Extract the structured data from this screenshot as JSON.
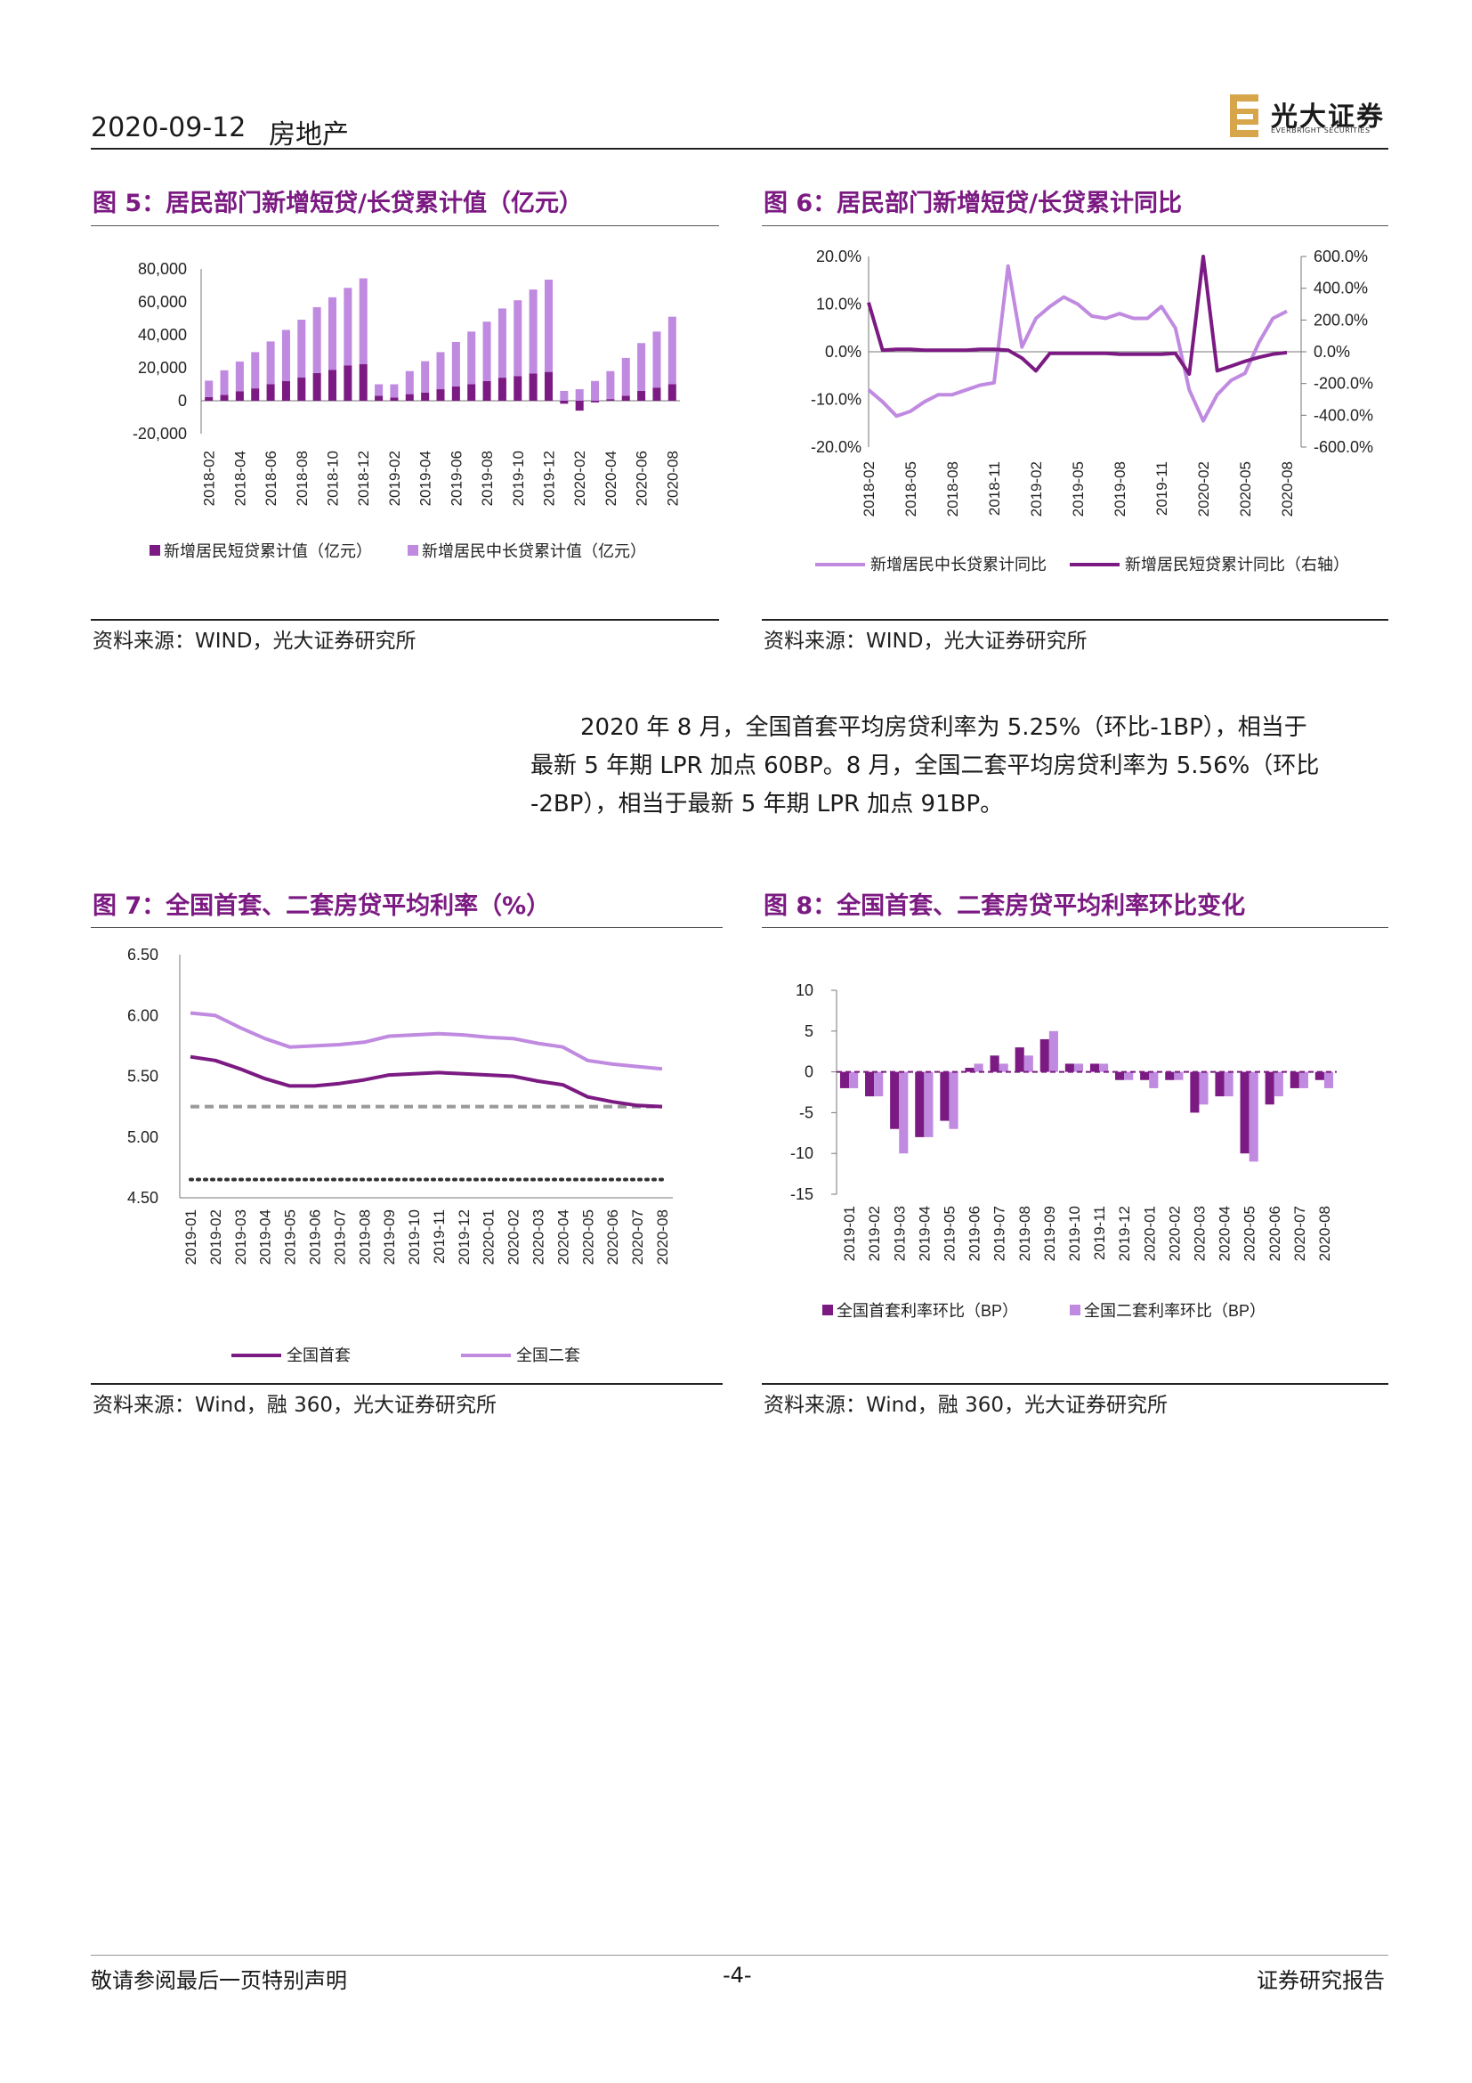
{
  "header": {
    "date": "2020-09-12",
    "sector": "房地产",
    "logo_name": "光大证券",
    "logo_sub": "EVERBRIGHT SECURITIES",
    "logo_letter": "E"
  },
  "fig5": {
    "title": "图 5：居民部门新增短贷/长贷累计值（亿元）",
    "source": "资料来源：WIND，光大证券研究所",
    "chart_data": {
      "type": "bar",
      "stacked": true,
      "categories": [
        "2018-02",
        "2018-03",
        "2018-04",
        "2018-05",
        "2018-06",
        "2018-07",
        "2018-08",
        "2018-09",
        "2018-10",
        "2018-11",
        "2018-12",
        "2019-01",
        "2019-02",
        "2019-03",
        "2019-04",
        "2019-05",
        "2019-06",
        "2019-07",
        "2019-08",
        "2019-09",
        "2019-10",
        "2019-11",
        "2019-12",
        "2020-01",
        "2020-02",
        "2020-03",
        "2020-04",
        "2020-05",
        "2020-06",
        "2020-07",
        "2020-08"
      ],
      "x_tick_labels": [
        "2018-02",
        "2018-04",
        "2018-06",
        "2018-08",
        "2018-10",
        "2018-12",
        "2019-02",
        "2019-04",
        "2019-06",
        "2019-08",
        "2019-10",
        "2019-12",
        "2020-02",
        "2020-04",
        "2020-06",
        "2020-08"
      ],
      "series": [
        {
          "name": "新增居民短贷累计值（亿元）",
          "color": "#7b1a82",
          "values": [
            2200,
            3500,
            5800,
            7500,
            10000,
            12000,
            14200,
            16800,
            18800,
            21500,
            22300,
            3000,
            2000,
            4000,
            5000,
            7000,
            8700,
            10000,
            12000,
            14000,
            15000,
            16500,
            17500,
            -1800,
            -6000,
            -1000,
            1000,
            3000,
            6000,
            8000,
            10000
          ]
        },
        {
          "name": "新增居民中长贷累计值（亿元）",
          "color": "#c08ae0",
          "values": [
            10000,
            15000,
            18000,
            22000,
            26000,
            31000,
            35000,
            40000,
            44000,
            47000,
            52000,
            7000,
            8000,
            14000,
            19000,
            22500,
            27000,
            32000,
            36000,
            42000,
            46000,
            51000,
            56000,
            6000,
            7000,
            12000,
            17000,
            23000,
            29000,
            34000,
            41000
          ]
        }
      ],
      "yticks": [
        "80,000",
        "60,000",
        "40,000",
        "20,000",
        "0",
        "-20,000"
      ],
      "ylim": [
        -20000,
        80000
      ]
    }
  },
  "fig6": {
    "title": "图 6：居民部门新增短贷/长贷累计同比",
    "source": "资料来源：WIND，光大证券研究所",
    "chart_data": {
      "type": "line",
      "x_tick_labels": [
        "2018-02",
        "2018-05",
        "2018-08",
        "2018-11",
        "2019-02",
        "2019-05",
        "2019-08",
        "2019-11",
        "2020-02",
        "2020-05",
        "2020-08"
      ],
      "left_yticks": [
        "20.0%",
        "10.0%",
        "0.0%",
        "-10.0%",
        "-20.0%"
      ],
      "right_yticks": [
        "600.0%",
        "400.0%",
        "200.0%",
        "0.0%",
        "-200.0%",
        "-400.0%",
        "-600.0%"
      ],
      "series": [
        {
          "name": "新增居民中长贷累计同比",
          "axis": "left",
          "color": "#c08ae0",
          "x": [
            "2018-02",
            "2018-03",
            "2018-04",
            "2018-05",
            "2018-06",
            "2018-07",
            "2018-08",
            "2018-09",
            "2018-10",
            "2018-11",
            "2018-12",
            "2019-01",
            "2019-02",
            "2019-03",
            "2019-04",
            "2019-05",
            "2019-06",
            "2019-07",
            "2019-08",
            "2019-09",
            "2019-10",
            "2019-11",
            "2019-12",
            "2020-01",
            "2020-02",
            "2020-03",
            "2020-04",
            "2020-05",
            "2020-06",
            "2020-07",
            "2020-08"
          ],
          "values": [
            -8,
            -10.5,
            -13.5,
            -12.5,
            -10.5,
            -9,
            -9,
            -8,
            -7,
            -6.5,
            18,
            1,
            7,
            9.5,
            11.5,
            10,
            7.5,
            7,
            8,
            7,
            7,
            9.5,
            5,
            -8,
            -14.5,
            -9,
            -6,
            -4.5,
            2,
            7,
            8.5
          ]
        },
        {
          "name": "新增居民短贷累计同比（右轴）",
          "axis": "right",
          "color": "#7b1a82",
          "x": [
            "2018-02",
            "2018-03",
            "2018-04",
            "2018-05",
            "2018-06",
            "2018-07",
            "2018-08",
            "2018-09",
            "2018-10",
            "2018-11",
            "2018-12",
            "2019-01",
            "2019-02",
            "2019-03",
            "2019-04",
            "2019-05",
            "2019-06",
            "2019-07",
            "2019-08",
            "2019-09",
            "2019-10",
            "2019-11",
            "2019-12",
            "2020-01",
            "2020-02",
            "2020-03",
            "2020-04",
            "2020-05",
            "2020-06",
            "2020-07",
            "2020-08"
          ],
          "values": [
            310,
            10,
            15,
            15,
            10,
            10,
            10,
            10,
            15,
            15,
            10,
            -40,
            -120,
            -10,
            -10,
            -10,
            -10,
            -10,
            -15,
            -15,
            -15,
            -15,
            -10,
            -140,
            2000,
            -120,
            -90,
            -60,
            -35,
            -15,
            -5
          ]
        }
      ]
    }
  },
  "paragraph": {
    "line1": "2020 年 8 月，全国首套平均房贷利率为 5.25%（环比-1BP），相当于",
    "line2": "最新 5 年期 LPR 加点 60BP。8 月，全国二套平均房贷利率为 5.56%（环比",
    "line3": "-2BP），相当于最新 5 年期 LPR 加点 91BP。"
  },
  "fig7": {
    "title": "图 7：全国首套、二套房贷平均利率（%）",
    "source": "资料来源：Wind，融 360，光大证券研究所",
    "chart_data": {
      "type": "line",
      "categories": [
        "2019-01",
        "2019-02",
        "2019-03",
        "2019-04",
        "2019-05",
        "2019-06",
        "2019-07",
        "2019-08",
        "2019-09",
        "2019-10",
        "2019-11",
        "2019-12",
        "2020-01",
        "2020-02",
        "2020-03",
        "2020-04",
        "2020-05",
        "2020-06",
        "2020-07",
        "2020-08"
      ],
      "yticks": [
        "6.50",
        "6.00",
        "5.50",
        "5.00",
        "4.50"
      ],
      "ylim": [
        4.5,
        6.5
      ],
      "series": [
        {
          "name": "全国首套",
          "color": "#7b1a82",
          "values": [
            5.66,
            5.63,
            5.56,
            5.48,
            5.42,
            5.42,
            5.44,
            5.47,
            5.51,
            5.52,
            5.53,
            5.52,
            5.51,
            5.5,
            5.46,
            5.43,
            5.33,
            5.29,
            5.26,
            5.25
          ]
        },
        {
          "name": "全国二套",
          "color": "#c08ae0",
          "values": [
            6.02,
            6.0,
            5.9,
            5.81,
            5.74,
            5.75,
            5.76,
            5.78,
            5.83,
            5.84,
            5.85,
            5.84,
            5.82,
            5.81,
            5.77,
            5.74,
            5.63,
            5.6,
            5.58,
            5.56
          ]
        }
      ],
      "reference_lines": [
        {
          "y": 5.25,
          "style": "dashed",
          "color": "#9a9a9a"
        },
        {
          "y": 4.65,
          "style": "dotted",
          "color": "#333333"
        }
      ]
    }
  },
  "fig8": {
    "title": "图 8：全国首套、二套房贷平均利率环比变化",
    "source": "资料来源：Wind，融 360，光大证券研究所",
    "chart_data": {
      "type": "bar",
      "categories": [
        "2019-01",
        "2019-02",
        "2019-03",
        "2019-04",
        "2019-05",
        "2019-06",
        "2019-07",
        "2019-08",
        "2019-09",
        "2019-10",
        "2019-11",
        "2019-12",
        "2020-01",
        "2020-02",
        "2020-03",
        "2020-04",
        "2020-05",
        "2020-06",
        "2020-07",
        "2020-08"
      ],
      "yticks": [
        "10",
        "5",
        "0",
        "-5",
        "-10",
        "-15"
      ],
      "ylim": [
        -15,
        10
      ],
      "series": [
        {
          "name": "全国首套利率环比（BP）",
          "color": "#7b1a82",
          "values": [
            -2,
            -3,
            -7,
            -8,
            -6,
            0.5,
            2,
            3,
            4,
            1,
            1,
            -1,
            -1,
            -1,
            -5,
            -3,
            -10,
            -4,
            -2,
            -1
          ]
        },
        {
          "name": "全国二套利率环比（BP）",
          "color": "#c08ae0",
          "values": [
            -2,
            -3,
            -10,
            -8,
            -7,
            1,
            1,
            2,
            5,
            1,
            1,
            -1,
            -2,
            -1,
            -4,
            -3,
            -11,
            -3,
            -2,
            -2
          ]
        }
      ]
    }
  },
  "footer": {
    "left": "敬请参阅最后一页特别声明",
    "center": "-4-",
    "right": "证券研究报告"
  }
}
